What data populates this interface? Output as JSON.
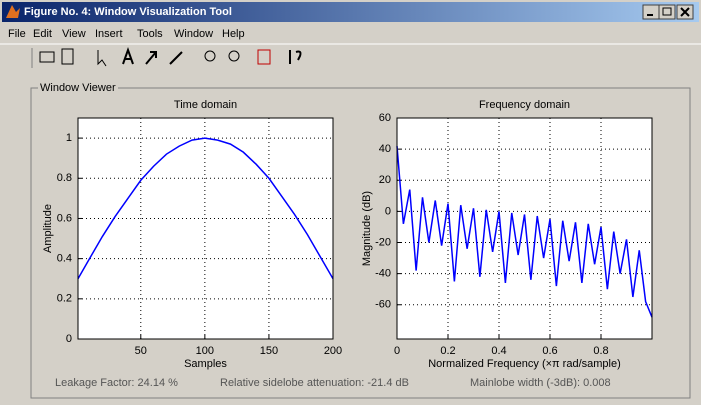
{
  "window": {
    "title": "Figure No. 4: Window Visualization Tool"
  },
  "menu": [
    "File",
    "Edit",
    "View",
    "Insert",
    "Tools",
    "Window",
    "Help"
  ],
  "panel": {
    "title": "Window Viewer"
  },
  "chart_data": [
    {
      "type": "line",
      "title": "Time domain",
      "x_label": "Samples",
      "y_label": "Amplitude",
      "x": [
        1,
        10,
        20,
        30,
        40,
        50,
        60,
        70,
        80,
        90,
        100,
        110,
        120,
        130,
        140,
        150,
        160,
        170,
        180,
        190,
        200
      ],
      "values": [
        0.3,
        0.4,
        0.51,
        0.61,
        0.7,
        0.79,
        0.86,
        0.92,
        0.96,
        0.99,
        1.0,
        0.99,
        0.97,
        0.93,
        0.87,
        0.8,
        0.71,
        0.62,
        0.52,
        0.41,
        0.3
      ],
      "color": "#0000ff",
      "xlim": [
        1,
        200
      ],
      "ylim": [
        0,
        1.1
      ],
      "xticks": [
        50,
        100,
        150,
        200
      ],
      "yticks": [
        0,
        0.2,
        0.4,
        0.6,
        0.8,
        1
      ],
      "grid": true
    },
    {
      "type": "line",
      "title": "Frequency domain",
      "x_label": "Normalized Frequency  (×π rad/sample)",
      "y_label": "Magnitude (dB)",
      "x": [
        0,
        0.025,
        0.05,
        0.075,
        0.1,
        0.125,
        0.15,
        0.175,
        0.2,
        0.225,
        0.25,
        0.275,
        0.3,
        0.325,
        0.35,
        0.375,
        0.4,
        0.425,
        0.45,
        0.475,
        0.5,
        0.525,
        0.55,
        0.575,
        0.6,
        0.625,
        0.65,
        0.675,
        0.7,
        0.725,
        0.75,
        0.775,
        0.8,
        0.825,
        0.85,
        0.875,
        0.9,
        0.925,
        0.95,
        0.975,
        1
      ],
      "values": [
        42,
        -8,
        14,
        -38,
        9,
        -20,
        7,
        -22,
        5,
        -45,
        4,
        -24,
        2,
        -42,
        1,
        -26,
        0,
        -46,
        -1,
        -28,
        -2,
        -44,
        -3,
        -30,
        -5,
        -48,
        -6,
        -32,
        -7,
        -46,
        -8,
        -34,
        -10,
        -50,
        -13,
        -40,
        -18,
        -55,
        -25,
        -58,
        -68
      ],
      "color": "#0000ff",
      "xlim": [
        0,
        1
      ],
      "ylim": [
        -82,
        60
      ],
      "xticks": [
        0,
        0.2,
        0.4,
        0.6,
        0.8
      ],
      "yticks": [
        -60,
        -40,
        -20,
        0,
        20,
        40,
        60
      ],
      "grid": true
    }
  ],
  "status": [
    "Leakage Factor: 24.14 %",
    "Relative sidelobe attenuation: -21.4 dB",
    "Mainlobe width (-3dB): 0.008"
  ]
}
